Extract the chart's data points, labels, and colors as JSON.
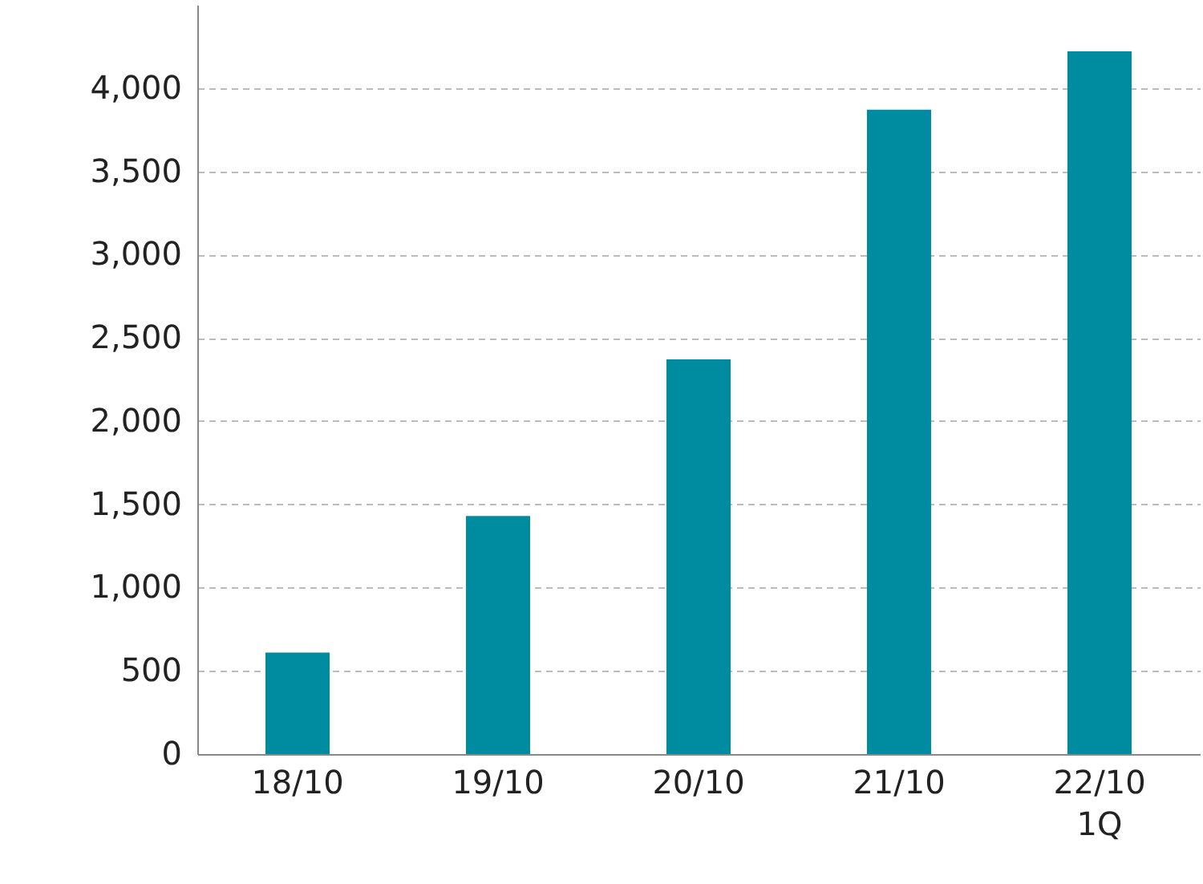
{
  "chart_data": {
    "type": "bar",
    "categories": [
      "18/10",
      "19/10",
      "20/10",
      "21/10",
      "22/10\n1Q"
    ],
    "values": [
      610,
      1430,
      2370,
      3870,
      4220
    ],
    "color": "#008ca0",
    "ylim": [
      0,
      4500
    ],
    "yticks": [
      0,
      500,
      {
        "value": 1000,
        "label": "1,000"
      },
      {
        "value": 1500,
        "label": "1,500"
      },
      {
        "value": 2000,
        "label": "2,000"
      },
      {
        "value": 2500,
        "label": "2,500"
      },
      {
        "value": 3000,
        "label": "3,000"
      },
      {
        "value": 3500,
        "label": "3,500"
      },
      {
        "value": 4000,
        "label": "4,000"
      }
    ],
    "grid": "y"
  }
}
